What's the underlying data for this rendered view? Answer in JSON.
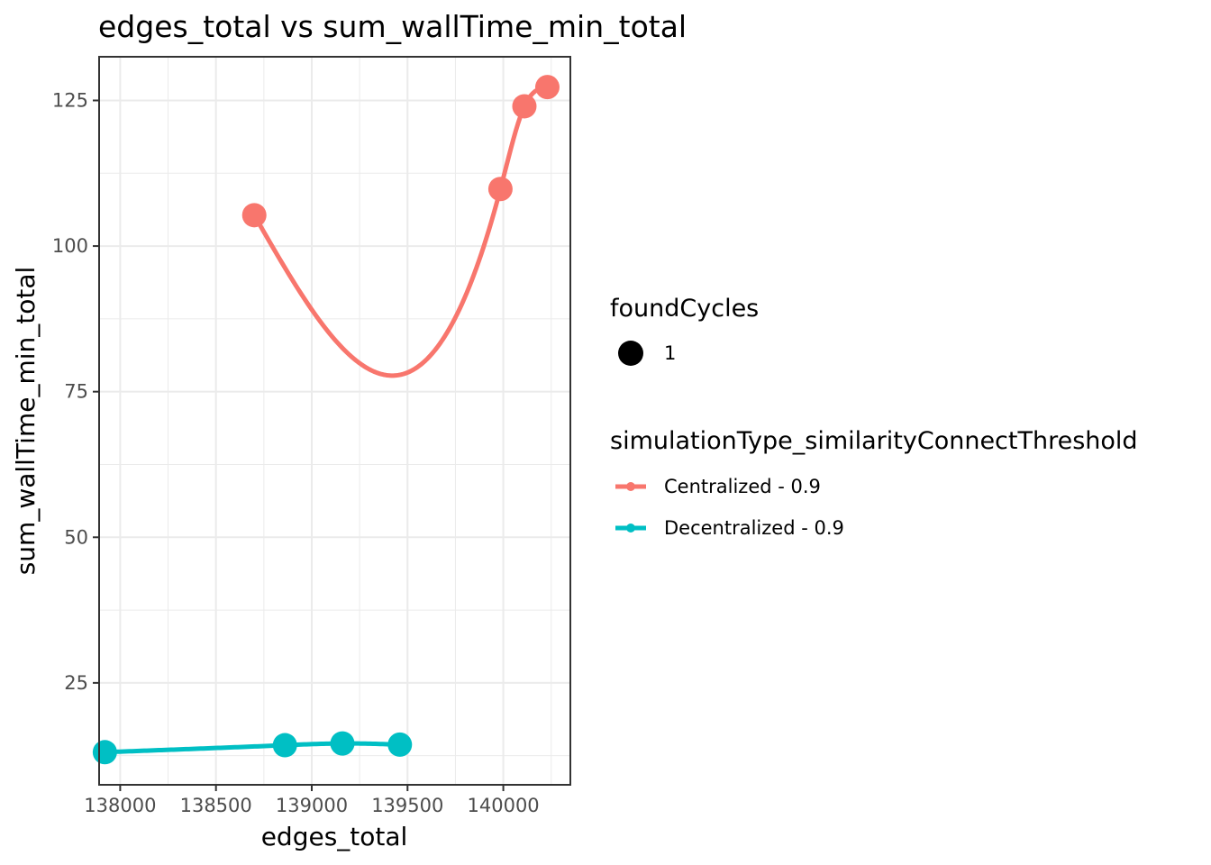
{
  "chart_data": {
    "type": "line",
    "title": "edges_total  vs  sum_wallTime_min_total",
    "xlabel": "edges_total",
    "ylabel": "sum_wallTime_min_total",
    "xlim": [
      137890,
      140350
    ],
    "ylim": [
      7.5,
      132.5
    ],
    "x_ticks": [
      138000,
      138500,
      139000,
      139500,
      140000
    ],
    "x_tick_labels": [
      "138000",
      "138500",
      "139000",
      "139500",
      "140000"
    ],
    "y_ticks": [
      25,
      50,
      75,
      100,
      125
    ],
    "y_tick_labels": [
      "25",
      "50",
      "75",
      "100",
      "125"
    ],
    "grid": true,
    "legend_position": "right",
    "series": [
      {
        "name": "Centralized - 0.9",
        "color": "#F8766D",
        "smoothed": true,
        "x": [
          138700,
          139985,
          140110,
          140230
        ],
        "y": [
          105.3,
          109.8,
          124.0,
          127.3
        ]
      },
      {
        "name": "Decentralized - 0.9",
        "color": "#00BFC4",
        "smoothed": true,
        "x": [
          137920,
          138860,
          139160,
          139460
        ],
        "y": [
          13.1,
          14.3,
          14.6,
          14.4
        ]
      }
    ],
    "legends": [
      {
        "title": "foundCycles",
        "entries": [
          "1"
        ],
        "icon": "filled-circle"
      },
      {
        "title": "simulationType_similarityConnectThreshold",
        "entries": [
          "Centralized - 0.9",
          "Decentralized - 0.9"
        ],
        "icon": "line-with-point"
      }
    ]
  }
}
